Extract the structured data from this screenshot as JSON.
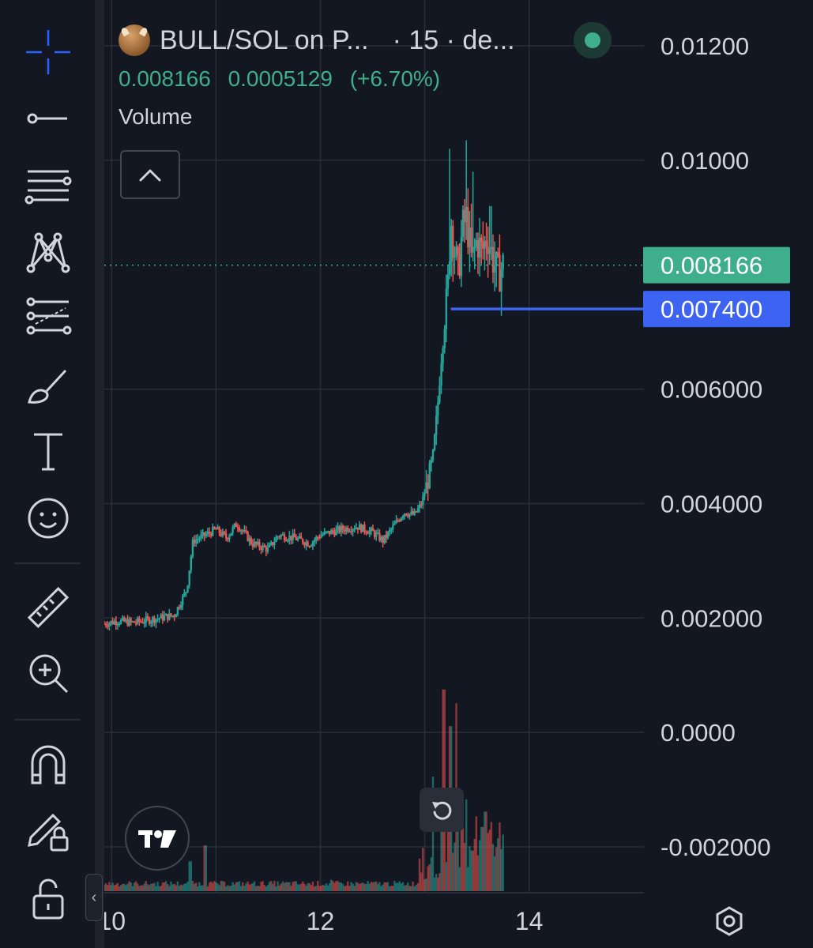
{
  "toolbar": {
    "tools": [
      {
        "id": "crosshair",
        "icon": "crosshair-icon"
      },
      {
        "id": "trend-line",
        "icon": "trend-line-icon"
      },
      {
        "id": "fib",
        "icon": "fib-retracement-icon"
      },
      {
        "id": "patterns",
        "icon": "pattern-icon"
      },
      {
        "id": "forecast",
        "icon": "forecast-icon"
      },
      {
        "id": "brush",
        "icon": "brush-icon"
      },
      {
        "id": "text",
        "icon": "text-icon"
      },
      {
        "id": "emoji",
        "icon": "smiley-icon"
      },
      {
        "id": "ruler",
        "icon": "ruler-icon"
      },
      {
        "id": "zoom",
        "icon": "zoom-in-icon"
      },
      {
        "id": "magnet",
        "icon": "magnet-icon"
      },
      {
        "id": "lock-drawing",
        "icon": "pencil-lock-icon"
      },
      {
        "id": "unlock",
        "icon": "unlock-icon"
      }
    ],
    "collapse_glyph": "‹"
  },
  "legend": {
    "symbol": "BULL/SOL on P...",
    "meta": "· 15 · de...",
    "last": "0.008166",
    "change": "0.0005129",
    "change_pct": "(+6.70%)",
    "indicator": "Volume"
  },
  "colors": {
    "background": "#131722",
    "grid": "#2a2e39",
    "text": "#d1d4dc",
    "up": "#26a69a",
    "down": "#ef5350",
    "last_price": "#3fae8a",
    "horizontal_line": "#3d63f2"
  },
  "chart_data": {
    "type": "candlestick",
    "title": "",
    "y_ticks": [
      "0.01200",
      "0.01000",
      "0.008166",
      "0.007400",
      "0.006000",
      "0.004000",
      "0.002000",
      "0.0000",
      "-0.002000"
    ],
    "y_tick_values": [
      0.012,
      0.01,
      0.006,
      0.004,
      0.002,
      0.0,
      -0.002
    ],
    "ylim": [
      -0.0028,
      0.0128
    ],
    "x_ticks": [
      "10",
      "12",
      "14"
    ],
    "x_tick_values": [
      10,
      12,
      14
    ],
    "xlim": [
      9.93,
      15.1
    ],
    "last_price": {
      "value": 0.008166,
      "label": "0.008166"
    },
    "horizontal_line": {
      "value": 0.0074,
      "label": "0.007400",
      "x_start": 13.25
    },
    "price_path": [
      [
        9.93,
        0.0019
      ],
      [
        10.05,
        0.00195
      ],
      [
        10.2,
        0.00192
      ],
      [
        10.4,
        0.00198
      ],
      [
        10.6,
        0.00205
      ],
      [
        10.72,
        0.0025
      ],
      [
        10.78,
        0.00335
      ],
      [
        10.9,
        0.00345
      ],
      [
        11.0,
        0.00355
      ],
      [
        11.1,
        0.0034
      ],
      [
        11.2,
        0.00365
      ],
      [
        11.35,
        0.0033
      ],
      [
        11.5,
        0.0032
      ],
      [
        11.6,
        0.00345
      ],
      [
        11.75,
        0.0034
      ],
      [
        11.9,
        0.0033
      ],
      [
        12.0,
        0.00345
      ],
      [
        12.2,
        0.00355
      ],
      [
        12.35,
        0.0036
      ],
      [
        12.5,
        0.0035
      ],
      [
        12.6,
        0.00335
      ],
      [
        12.7,
        0.0036
      ],
      [
        12.8,
        0.00385
      ],
      [
        12.9,
        0.0038
      ],
      [
        12.97,
        0.004
      ],
      [
        13.03,
        0.0044
      ],
      [
        13.08,
        0.0048
      ],
      [
        13.12,
        0.0056
      ],
      [
        13.15,
        0.0064
      ],
      [
        13.18,
        0.007
      ],
      [
        13.22,
        0.0077
      ],
      [
        13.25,
        0.009
      ],
      [
        13.28,
        0.0085
      ],
      [
        13.32,
        0.008
      ],
      [
        13.36,
        0.0088
      ],
      [
        13.4,
        0.009
      ],
      [
        13.45,
        0.0082
      ],
      [
        13.5,
        0.0086
      ],
      [
        13.55,
        0.0084
      ],
      [
        13.6,
        0.0087
      ],
      [
        13.65,
        0.0083
      ],
      [
        13.7,
        0.008
      ],
      [
        13.75,
        0.00816
      ]
    ],
    "wick_highs": [
      [
        13.24,
        0.0102
      ],
      [
        13.4,
        0.01035
      ],
      [
        13.46,
        0.0098
      ],
      [
        13.63,
        0.0092
      ]
    ],
    "volume_spikes": [
      [
        10.75,
        0.13
      ],
      [
        10.9,
        0.2
      ],
      [
        12.1,
        0.05
      ],
      [
        13.08,
        0.5
      ],
      [
        13.18,
        0.88
      ],
      [
        13.25,
        0.72
      ],
      [
        13.3,
        0.82
      ],
      [
        13.4,
        0.4
      ],
      [
        13.55,
        0.28
      ],
      [
        13.72,
        0.3
      ]
    ]
  }
}
